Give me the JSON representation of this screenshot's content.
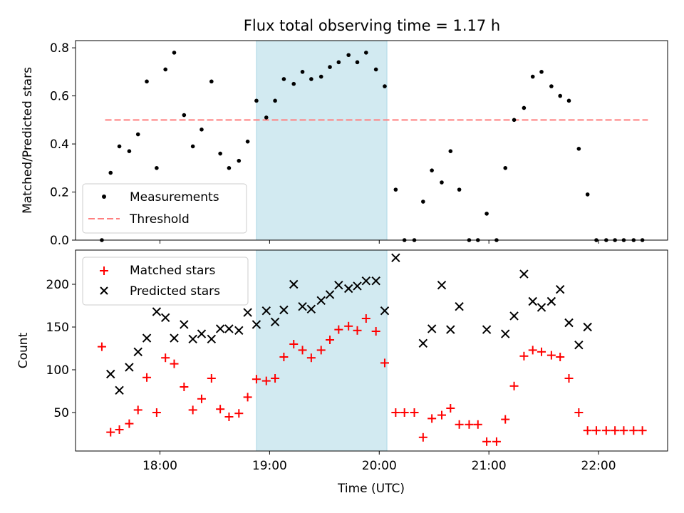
{
  "title": "Flux total observing time = 1.17 h",
  "colors": {
    "measurements": "#000000",
    "threshold": "#ff7f7f",
    "matched": "#ff0000",
    "predicted": "#000000",
    "shade": "#add8e6"
  },
  "chart_data": [
    {
      "type": "scatter",
      "ylabel": "Matched/Predicted stars",
      "xlim": [
        17.23,
        22.63
      ],
      "ylim": [
        0,
        0.83
      ],
      "yticks": [
        0.0,
        0.2,
        0.4,
        0.6,
        0.8
      ],
      "ytick_labels": [
        "0.0",
        "0.2",
        "0.4",
        "0.6",
        "0.8"
      ],
      "shaded_span": [
        18.88,
        20.07
      ],
      "legend": {
        "position": "lower-left",
        "entries": [
          "Measurements",
          "Threshold"
        ]
      },
      "threshold": {
        "name": "Threshold",
        "x": [
          17.5,
          22.45
        ],
        "y": 0.5
      },
      "series": [
        {
          "name": "Measurements",
          "x": [
            17.47,
            17.55,
            17.63,
            17.72,
            17.8,
            17.88,
            17.97,
            18.05,
            18.13,
            18.22,
            18.3,
            18.38,
            18.47,
            18.55,
            18.63,
            18.72,
            18.8,
            18.88,
            18.97,
            19.05,
            19.13,
            19.22,
            19.3,
            19.38,
            19.47,
            19.55,
            19.63,
            19.72,
            19.8,
            19.88,
            19.97,
            20.05,
            20.15,
            20.23,
            20.32,
            20.4,
            20.48,
            20.57,
            20.65,
            20.73,
            20.82,
            20.9,
            20.98,
            21.07,
            21.15,
            21.23,
            21.32,
            21.4,
            21.48,
            21.57,
            21.65,
            21.73,
            21.82,
            21.9,
            21.98,
            22.07,
            22.15,
            22.23,
            22.32,
            22.4
          ],
          "y": [
            0.0,
            0.28,
            0.39,
            0.37,
            0.44,
            0.66,
            0.3,
            0.71,
            0.78,
            0.52,
            0.39,
            0.46,
            0.66,
            0.36,
            0.3,
            0.33,
            0.41,
            0.58,
            0.51,
            0.58,
            0.67,
            0.65,
            0.7,
            0.67,
            0.68,
            0.72,
            0.74,
            0.77,
            0.74,
            0.78,
            0.71,
            0.64,
            0.21,
            0.0,
            0.0,
            0.16,
            0.29,
            0.24,
            0.37,
            0.21,
            0.0,
            0.0,
            0.11,
            0.0,
            0.3,
            0.5,
            0.55,
            0.68,
            0.7,
            0.64,
            0.6,
            0.58,
            0.38,
            0.19,
            0.0,
            0.0,
            0.0,
            0.0,
            0.0,
            0.0
          ]
        }
      ]
    },
    {
      "type": "scatter",
      "xlabel": "Time (UTC)",
      "ylabel": "Count",
      "xlim": [
        17.23,
        22.63
      ],
      "ylim": [
        5,
        240
      ],
      "xticks": [
        18,
        19,
        20,
        21,
        22
      ],
      "xtick_labels": [
        "18:00",
        "19:00",
        "20:00",
        "21:00",
        "22:00"
      ],
      "yticks": [
        50,
        100,
        150,
        200
      ],
      "ytick_labels": [
        "50",
        "100",
        "150",
        "200"
      ],
      "shaded_span": [
        18.88,
        20.07
      ],
      "legend": {
        "position": "upper-left",
        "entries": [
          "Matched stars",
          "Predicted stars"
        ]
      },
      "series": [
        {
          "name": "Matched stars",
          "marker": "plus",
          "x": [
            17.47,
            17.55,
            17.63,
            17.72,
            17.8,
            17.88,
            17.97,
            18.05,
            18.13,
            18.22,
            18.3,
            18.38,
            18.47,
            18.55,
            18.63,
            18.72,
            18.8,
            18.88,
            18.97,
            19.05,
            19.13,
            19.22,
            19.3,
            19.38,
            19.47,
            19.55,
            19.63,
            19.72,
            19.8,
            19.88,
            19.97,
            20.05,
            20.15,
            20.23,
            20.32,
            20.4,
            20.48,
            20.57,
            20.65,
            20.73,
            20.82,
            20.9,
            20.98,
            21.07,
            21.15,
            21.23,
            21.32,
            21.4,
            21.48,
            21.57,
            21.65,
            21.73,
            21.82,
            21.9,
            21.98,
            22.07,
            22.15,
            22.23,
            22.32,
            22.4
          ],
          "y": [
            127,
            27,
            30,
            37,
            53,
            91,
            50,
            114,
            107,
            80,
            53,
            66,
            90,
            54,
            45,
            49,
            68,
            89,
            87,
            90,
            115,
            130,
            123,
            114,
            123,
            135,
            147,
            151,
            146,
            160,
            145,
            108,
            50,
            50,
            50,
            21,
            43,
            47,
            55,
            36,
            36,
            36,
            16,
            16,
            42,
            81,
            116,
            123,
            121,
            117,
            115,
            90,
            50,
            29,
            29,
            29,
            29,
            29,
            29,
            29
          ]
        },
        {
          "name": "Predicted stars",
          "marker": "x",
          "x": [
            17.55,
            17.63,
            17.72,
            17.8,
            17.88,
            17.97,
            18.05,
            18.13,
            18.22,
            18.3,
            18.38,
            18.47,
            18.55,
            18.63,
            18.72,
            18.8,
            18.88,
            18.97,
            19.05,
            19.13,
            19.22,
            19.3,
            19.38,
            19.47,
            19.55,
            19.63,
            19.72,
            19.8,
            19.88,
            19.97,
            20.05,
            20.15,
            20.4,
            20.48,
            20.57,
            20.65,
            20.73,
            20.98,
            21.15,
            21.23,
            21.32,
            21.4,
            21.48,
            21.57,
            21.65,
            21.73,
            21.82,
            21.9
          ],
          "y": [
            95,
            76,
            103,
            121,
            137,
            168,
            161,
            137,
            153,
            136,
            142,
            136,
            148,
            148,
            146,
            167,
            153,
            169,
            156,
            170,
            200,
            174,
            171,
            181,
            188,
            199,
            195,
            198,
            204,
            204,
            169,
            231,
            131,
            148,
            199,
            147,
            174,
            147,
            142,
            163,
            212,
            180,
            173,
            180,
            194,
            155,
            129,
            150
          ]
        }
      ]
    }
  ]
}
